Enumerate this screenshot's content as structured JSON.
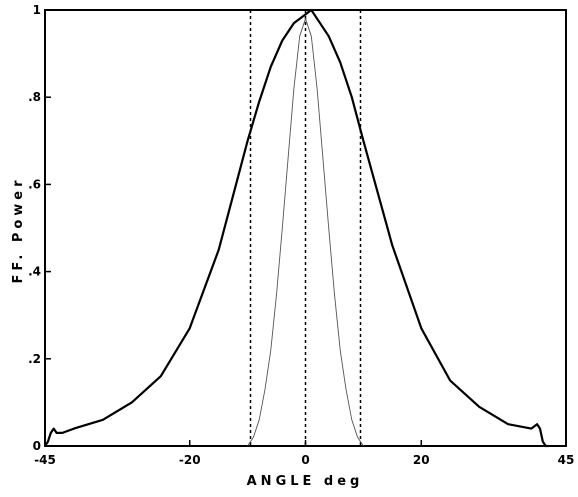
{
  "chart_data": {
    "type": "line",
    "xlabel": "ANGLE  deg",
    "ylabel": "FF. Power",
    "xlim": [
      -45,
      45
    ],
    "ylim": [
      0,
      1
    ],
    "x_ticks": [
      "-45",
      "-20",
      "0",
      "20",
      "45"
    ],
    "x_tick_values": [
      -45,
      -20,
      0,
      20,
      45
    ],
    "y_ticks": [
      "0",
      ".2",
      ".4",
      ".6",
      ".8",
      "1"
    ],
    "y_tick_values": [
      0,
      0.2,
      0.4,
      0.6,
      0.8,
      1
    ],
    "grid": false,
    "series": [
      {
        "style": "solid",
        "color": "#000000",
        "x": [
          -45,
          -44.5,
          -44,
          -43.5,
          -43,
          -42,
          -40,
          -35,
          -30,
          -25,
          -20,
          -15,
          -10,
          -8,
          -6,
          -4,
          -2,
          0,
          1,
          2,
          4,
          6,
          8,
          10,
          15,
          20,
          25,
          30,
          35,
          39,
          40,
          40.5,
          41,
          41.5,
          42
        ],
        "y": [
          0.0,
          0.01,
          0.03,
          0.04,
          0.03,
          0.03,
          0.04,
          0.06,
          0.1,
          0.16,
          0.27,
          0.45,
          0.7,
          0.79,
          0.87,
          0.93,
          0.97,
          0.99,
          1.0,
          0.98,
          0.94,
          0.88,
          0.8,
          0.7,
          0.46,
          0.27,
          0.15,
          0.09,
          0.05,
          0.04,
          0.05,
          0.04,
          0.01,
          0.0,
          0.0
        ]
      },
      {
        "style": "thin",
        "color": "#555555",
        "x": [
          -10,
          -9,
          -8,
          -7,
          -6,
          -5,
          -4,
          -3,
          -2,
          -1,
          0,
          1,
          2,
          3,
          4,
          5,
          6,
          7,
          8,
          9,
          10
        ],
        "y": [
          0.0,
          0.02,
          0.06,
          0.13,
          0.22,
          0.35,
          0.5,
          0.66,
          0.82,
          0.94,
          0.98,
          0.94,
          0.82,
          0.66,
          0.5,
          0.35,
          0.22,
          0.13,
          0.06,
          0.02,
          0.0
        ]
      }
    ],
    "vertical_lines": [
      {
        "x": -9.5,
        "style": "dotted"
      },
      {
        "x": 0,
        "style": "dotted"
      },
      {
        "x": 9.5,
        "style": "dotted"
      }
    ]
  }
}
